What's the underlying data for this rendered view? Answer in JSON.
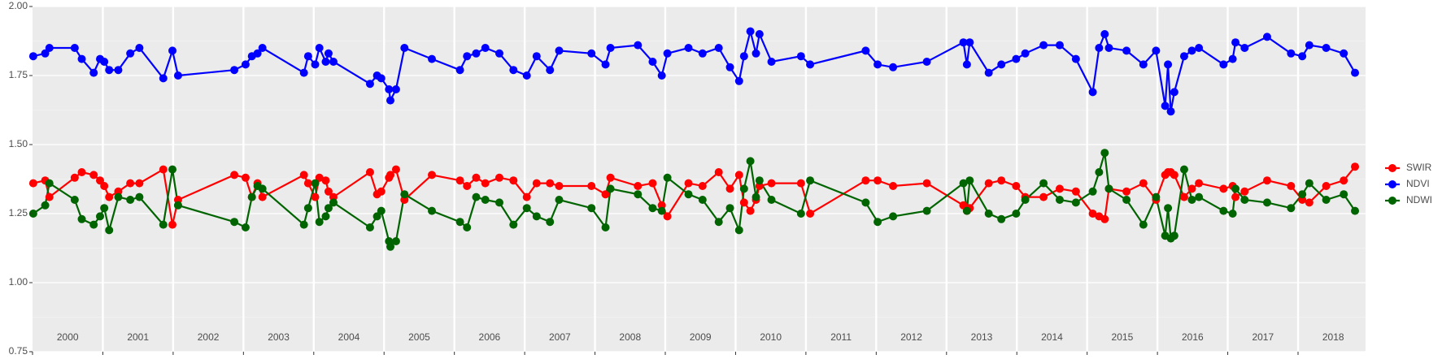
{
  "chart_data": {
    "type": "line",
    "x": [
      2000.01,
      2000.18,
      2000.24,
      2000.6,
      2000.7,
      2000.87,
      2000.96,
      2001.02,
      2001.09,
      2001.22,
      2001.39,
      2001.52,
      2001.86,
      2001.99,
      2002.07,
      2002.87,
      2003.03,
      2003.12,
      2003.2,
      2003.27,
      2003.86,
      2003.92,
      2004.02,
      2004.08,
      2004.17,
      2004.21,
      2004.28,
      2004.8,
      2004.9,
      2004.96,
      2005.07,
      2005.09,
      2005.17,
      2005.29,
      2005.68,
      2006.08,
      2006.18,
      2006.31,
      2006.44,
      2006.64,
      2006.84,
      2007.03,
      2007.17,
      2007.36,
      2007.49,
      2007.95,
      2008.15,
      2008.22,
      2008.61,
      2008.82,
      2008.95,
      2009.03,
      2009.33,
      2009.53,
      2009.76,
      2009.92,
      2010.05,
      2010.12,
      2010.21,
      2010.29,
      2010.34,
      2010.51,
      2010.93,
      2011.06,
      2011.85,
      2012.02,
      2012.24,
      2012.72,
      2013.24,
      2013.29,
      2013.33,
      2013.6,
      2013.78,
      2013.99,
      2014.12,
      2014.38,
      2014.61,
      2014.84,
      2015.08,
      2015.17,
      2015.25,
      2015.31,
      2015.56,
      2015.8,
      2015.98,
      2016.11,
      2016.15,
      2016.19,
      2016.24,
      2016.38,
      2016.49,
      2016.59,
      2016.94,
      2017.07,
      2017.11,
      2017.24,
      2017.56,
      2017.9,
      2018.06,
      2018.16,
      2018.4,
      2018.65,
      2018.81
    ],
    "series": [
      {
        "name": "SWIR",
        "color": "#ff0000",
        "values": [
          1.36,
          1.37,
          1.31,
          1.38,
          1.4,
          1.39,
          1.37,
          1.35,
          1.31,
          1.33,
          1.36,
          1.36,
          1.41,
          1.21,
          1.3,
          1.39,
          1.38,
          1.31,
          1.36,
          1.31,
          1.39,
          1.36,
          1.31,
          1.38,
          1.37,
          1.33,
          1.31,
          1.4,
          1.32,
          1.33,
          1.38,
          1.39,
          1.41,
          1.3,
          1.39,
          1.37,
          1.35,
          1.38,
          1.36,
          1.38,
          1.37,
          1.31,
          1.36,
          1.36,
          1.35,
          1.35,
          1.32,
          1.38,
          1.35,
          1.36,
          1.28,
          1.24,
          1.36,
          1.35,
          1.4,
          1.34,
          1.39,
          1.29,
          1.26,
          1.3,
          1.35,
          1.36,
          1.36,
          1.25,
          1.37,
          1.37,
          1.35,
          1.36,
          1.28,
          1.26,
          1.27,
          1.36,
          1.37,
          1.35,
          1.31,
          1.31,
          1.34,
          1.33,
          1.25,
          1.24,
          1.23,
          1.34,
          1.33,
          1.36,
          1.3,
          1.39,
          1.4,
          1.4,
          1.39,
          1.31,
          1.34,
          1.36,
          1.34,
          1.35,
          1.31,
          1.33,
          1.37,
          1.35,
          1.3,
          1.29,
          1.35,
          1.37,
          1.42
        ]
      },
      {
        "name": "NDVI",
        "color": "#0000ff",
        "values": [
          1.82,
          1.83,
          1.85,
          1.85,
          1.81,
          1.76,
          1.81,
          1.8,
          1.77,
          1.77,
          1.83,
          1.85,
          1.74,
          1.84,
          1.75,
          1.77,
          1.79,
          1.82,
          1.83,
          1.85,
          1.76,
          1.82,
          1.79,
          1.85,
          1.8,
          1.83,
          1.8,
          1.72,
          1.75,
          1.74,
          1.7,
          1.66,
          1.7,
          1.85,
          1.81,
          1.77,
          1.82,
          1.83,
          1.85,
          1.83,
          1.77,
          1.75,
          1.82,
          1.77,
          1.84,
          1.83,
          1.79,
          1.85,
          1.86,
          1.8,
          1.75,
          1.83,
          1.85,
          1.83,
          1.85,
          1.78,
          1.73,
          1.82,
          1.91,
          1.83,
          1.9,
          1.8,
          1.82,
          1.79,
          1.84,
          1.79,
          1.78,
          1.8,
          1.87,
          1.79,
          1.87,
          1.76,
          1.79,
          1.81,
          1.83,
          1.86,
          1.86,
          1.81,
          1.69,
          1.85,
          1.9,
          1.85,
          1.84,
          1.79,
          1.84,
          1.64,
          1.79,
          1.62,
          1.69,
          1.82,
          1.84,
          1.85,
          1.79,
          1.81,
          1.87,
          1.85,
          1.89,
          1.83,
          1.82,
          1.86,
          1.85,
          1.83,
          1.76
        ]
      },
      {
        "name": "NDWI",
        "color": "#006400",
        "values": [
          1.25,
          1.28,
          1.36,
          1.3,
          1.23,
          1.21,
          1.24,
          1.27,
          1.19,
          1.31,
          1.3,
          1.31,
          1.21,
          1.41,
          1.28,
          1.22,
          1.2,
          1.31,
          1.35,
          1.34,
          1.21,
          1.27,
          1.36,
          1.22,
          1.24,
          1.27,
          1.29,
          1.2,
          1.24,
          1.26,
          1.15,
          1.13,
          1.15,
          1.32,
          1.26,
          1.22,
          1.2,
          1.31,
          1.3,
          1.29,
          1.21,
          1.27,
          1.24,
          1.22,
          1.3,
          1.27,
          1.2,
          1.34,
          1.32,
          1.27,
          1.26,
          1.38,
          1.32,
          1.3,
          1.22,
          1.27,
          1.19,
          1.34,
          1.44,
          1.31,
          1.37,
          1.3,
          1.25,
          1.37,
          1.29,
          1.22,
          1.24,
          1.26,
          1.36,
          1.26,
          1.37,
          1.25,
          1.23,
          1.25,
          1.3,
          1.36,
          1.3,
          1.29,
          1.33,
          1.4,
          1.47,
          1.34,
          1.3,
          1.21,
          1.31,
          1.17,
          1.27,
          1.16,
          1.17,
          1.41,
          1.3,
          1.31,
          1.26,
          1.25,
          1.34,
          1.3,
          1.29,
          1.27,
          1.32,
          1.36,
          1.3,
          1.32,
          1.26
        ]
      }
    ],
    "xlim": [
      2000,
      2018.96
    ],
    "xticks": [
      {
        "value": 2000.5,
        "label": "2000"
      },
      {
        "value": 2001.5,
        "label": "2001"
      },
      {
        "value": 2002.5,
        "label": "2002"
      },
      {
        "value": 2003.5,
        "label": "2003"
      },
      {
        "value": 2004.5,
        "label": "2004"
      },
      {
        "value": 2005.5,
        "label": "2005"
      },
      {
        "value": 2006.5,
        "label": "2006"
      },
      {
        "value": 2007.5,
        "label": "2007"
      },
      {
        "value": 2008.5,
        "label": "2008"
      },
      {
        "value": 2009.5,
        "label": "2009"
      },
      {
        "value": 2010.5,
        "label": "2010"
      },
      {
        "value": 2011.5,
        "label": "2011"
      },
      {
        "value": 2012.5,
        "label": "2012"
      },
      {
        "value": 2013.5,
        "label": "2013"
      },
      {
        "value": 2014.5,
        "label": "2014"
      },
      {
        "value": 2015.5,
        "label": "2015"
      },
      {
        "value": 2016.5,
        "label": "2016"
      },
      {
        "value": 2017.5,
        "label": "2017"
      },
      {
        "value": 2018.5,
        "label": "2018"
      }
    ],
    "ylim": [
      0.75,
      2.0
    ],
    "yticks": [
      {
        "value": 0.75,
        "label": "0.75"
      },
      {
        "value": 1.0,
        "label": "1.00"
      },
      {
        "value": 1.25,
        "label": "1.25"
      },
      {
        "value": 1.5,
        "label": "1.50"
      },
      {
        "value": 1.75,
        "label": "1.75"
      },
      {
        "value": 2.0,
        "label": "2.00"
      }
    ],
    "grid": true,
    "legend": "right"
  }
}
